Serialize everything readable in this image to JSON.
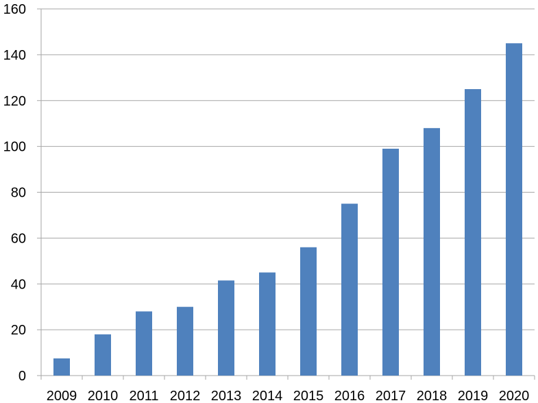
{
  "chart_data": {
    "type": "bar",
    "title": "",
    "xlabel": "",
    "ylabel": "",
    "categories": [
      "2009",
      "2010",
      "2011",
      "2012",
      "2013",
      "2014",
      "2015",
      "2016",
      "2017",
      "2018",
      "2019",
      "2020"
    ],
    "series": [
      {
        "values": [
          7.5,
          18,
          28,
          30,
          41.5,
          45,
          56,
          75,
          99,
          108,
          125,
          145
        ]
      }
    ],
    "ylim": [
      0,
      160
    ],
    "yticks": [
      0,
      20,
      40,
      60,
      80,
      100,
      120,
      140,
      160
    ],
    "ytick_labels": [
      "0",
      "20",
      "40",
      "60",
      "80",
      "100",
      "120",
      "140",
      "160"
    ],
    "grid": true,
    "legend": "none",
    "colors": {
      "bar": "#4F81BD",
      "grid": "#A6A6A6",
      "axis": "#A6A6A6",
      "text": "#000000"
    }
  }
}
